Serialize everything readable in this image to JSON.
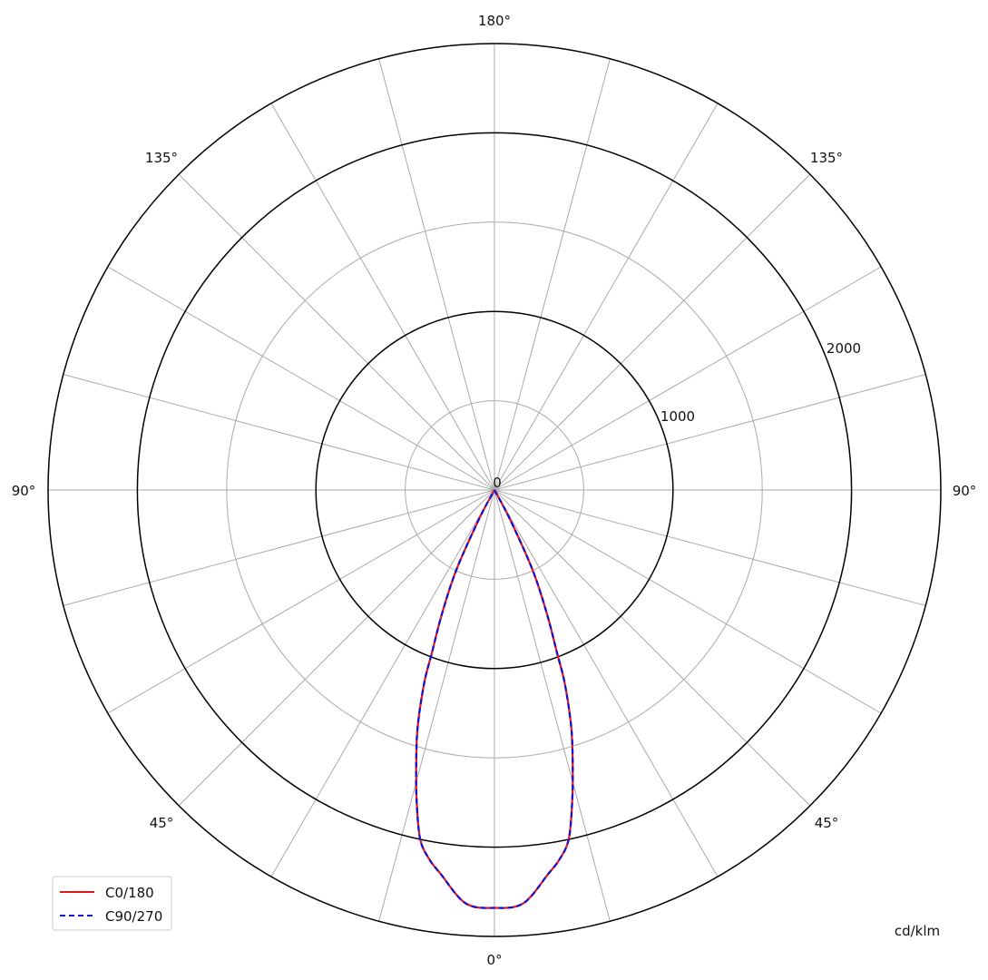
{
  "chart_data": {
    "type": "polar-line",
    "unit_label": "cd/klm",
    "rlim": [
      0,
      2500
    ],
    "ring_values": [
      500,
      1000,
      1500,
      2000,
      2500
    ],
    "major_rings": [
      1000,
      2000,
      2500
    ],
    "ring_labels": [
      "0",
      "1000",
      "2000"
    ],
    "angle_step_deg": 15,
    "angle_labels": {
      "bottom": "0°",
      "top": "180°",
      "left": "90°",
      "right": "90°",
      "lower_left": "45°",
      "lower_right": "45°",
      "upper_left": "135°",
      "upper_right": "135°"
    },
    "grid": true,
    "legend_position": "bottom-left",
    "colors": {
      "C0/180": "#e8141c",
      "C90/270": "#1010d0",
      "major_grid": "#000000",
      "minor_grid": "#aaaaaa"
    },
    "gamma_deg": [
      0,
      4,
      8,
      10,
      12,
      14,
      16,
      18,
      20,
      21,
      23,
      25.5,
      28,
      30
    ],
    "series": [
      {
        "name": "C0/180",
        "style": "solid",
        "values": [
          2340,
          2320,
          2170,
          2100,
          2000,
          1800,
          1590,
          1390,
          1150,
          980,
          750,
          495,
          180,
          0
        ]
      },
      {
        "name": "C90/270",
        "style": "dashed",
        "values": [
          2340,
          2320,
          2170,
          2100,
          2000,
          1800,
          1590,
          1390,
          1150,
          980,
          750,
          495,
          180,
          0
        ]
      }
    ]
  }
}
